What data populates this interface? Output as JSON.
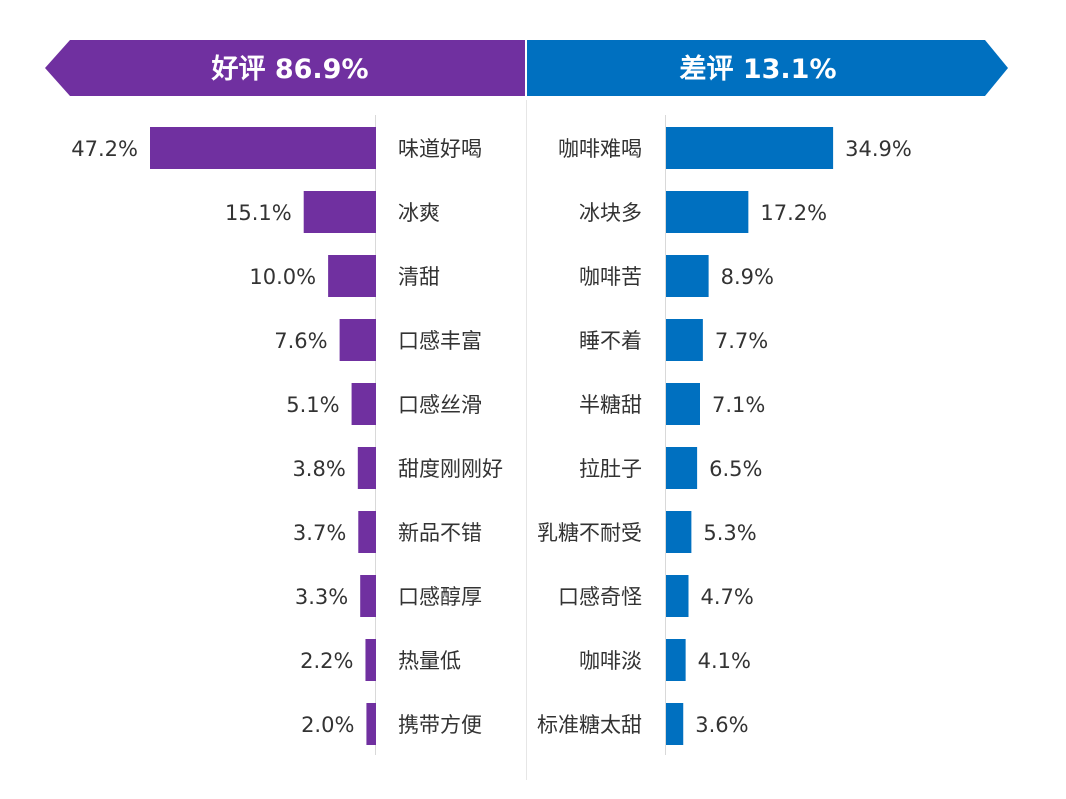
{
  "chart_data": {
    "type": "bar",
    "layout": "diverging-horizontal",
    "title": "",
    "colors": {
      "positive": "#7030a0",
      "negative": "#0070c0",
      "axis": "#d9d9d9",
      "text": "#333333"
    },
    "series": [
      {
        "name": "好评 86.9%",
        "side": "left",
        "categories": [
          "味道好喝",
          "冰爽",
          "清甜",
          "口感丰富",
          "口感丝滑",
          "甜度刚刚好",
          "新品不错",
          "口感醇厚",
          "热量低",
          "携带方便"
        ],
        "values": [
          47.2,
          15.1,
          10.0,
          7.6,
          5.1,
          3.8,
          3.7,
          3.3,
          2.2,
          2.0
        ],
        "labels": [
          "47.2%",
          "15.1%",
          "10.0%",
          "7.6%",
          "5.1%",
          "3.8%",
          "3.7%",
          "3.3%",
          "2.2%",
          "2.0%"
        ]
      },
      {
        "name": "差评 13.1%",
        "side": "right",
        "categories": [
          "咖啡难喝",
          "冰块多",
          "咖啡苦",
          "睡不着",
          "半糖甜",
          "拉肚子",
          "乳糖不耐受",
          "口感奇怪",
          "咖啡淡",
          "标准糖太甜"
        ],
        "values": [
          34.9,
          17.2,
          8.9,
          7.7,
          7.1,
          6.5,
          5.3,
          4.7,
          4.1,
          3.6
        ],
        "labels": [
          "34.9%",
          "17.2%",
          "8.9%",
          "7.7%",
          "7.1%",
          "6.5%",
          "5.3%",
          "4.7%",
          "4.1%",
          "3.6%"
        ]
      }
    ],
    "xlim": [
      0,
      50
    ],
    "grid": false,
    "legend": "top"
  }
}
